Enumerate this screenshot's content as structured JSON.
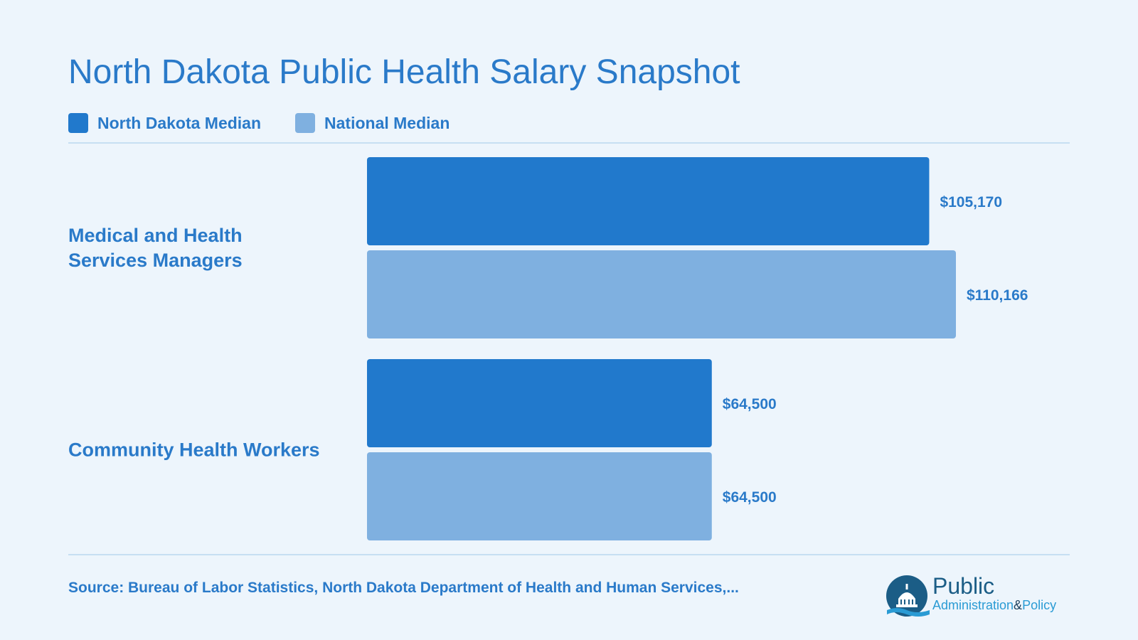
{
  "chart_data": {
    "type": "bar",
    "orientation": "horizontal",
    "title": "North Dakota Public Health Salary Snapshot",
    "categories": [
      "Medical and Health Services Managers",
      "Community Health Workers"
    ],
    "series": [
      {
        "name": "North Dakota Median",
        "values": [
          105170,
          64500
        ],
        "labels": [
          "$105,170",
          "$64,500"
        ],
        "color": "#2179cc"
      },
      {
        "name": "National Median",
        "values": [
          110166,
          64500
        ],
        "labels": [
          "$110,166",
          "$64,500"
        ],
        "color": "#7fb0e0"
      }
    ],
    "xlim": [
      0,
      110166
    ],
    "legend_position": "top-left",
    "grid": false
  },
  "footer": {
    "source": "Source: Bureau of Labor Statistics, North Dakota Department of Health and Human Services,..."
  },
  "logo": {
    "line1": "Public",
    "line2": "Administration",
    "amp": "&",
    "line3": "Policy"
  },
  "colors": {
    "text": "#2a7ac9",
    "background": "#edf5fc"
  }
}
